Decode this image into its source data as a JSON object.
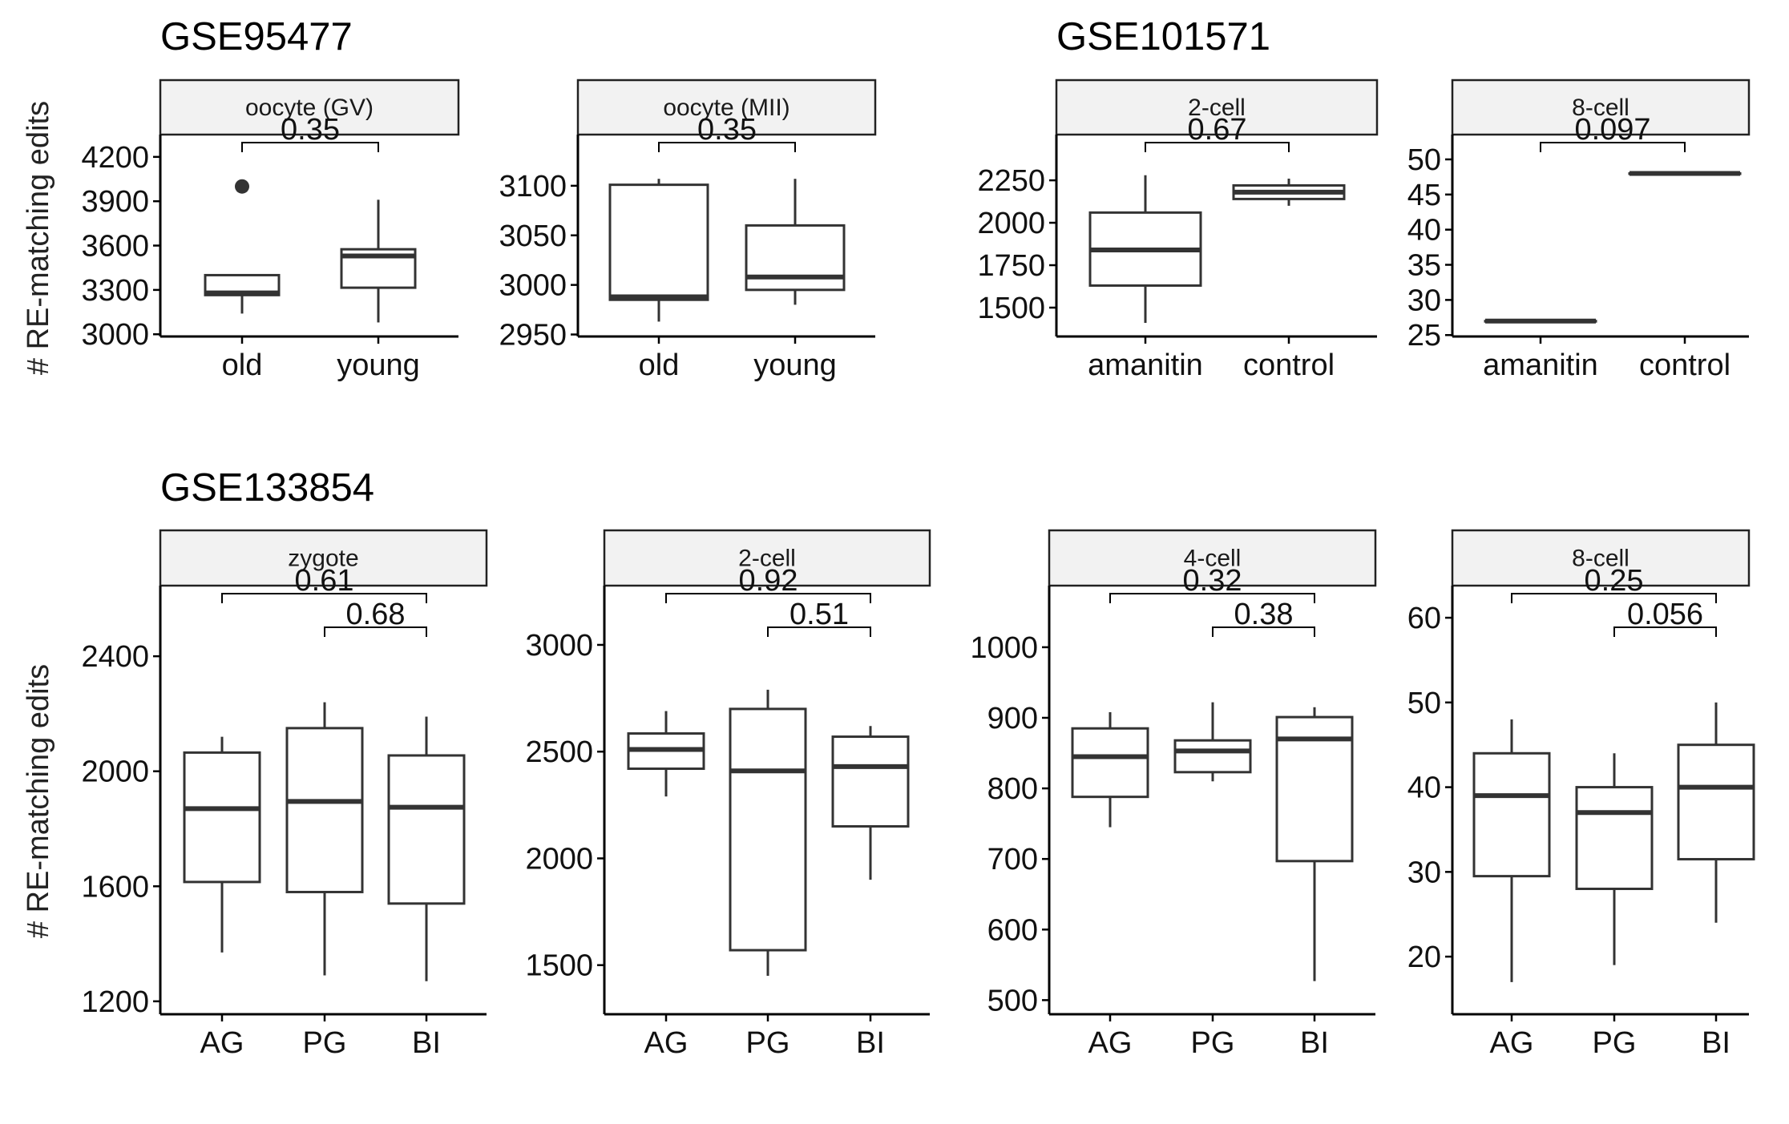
{
  "groups": [
    {
      "title": "GSE95477"
    },
    {
      "title": "GSE101571"
    },
    {
      "title": "GSE133854"
    }
  ],
  "ylabel": "# RE-matching edits",
  "chart_data": [
    {
      "type": "boxplot",
      "group": "GSE95477",
      "panel": "oocyte (GV)",
      "categories": [
        "old",
        "young"
      ],
      "yticks": [
        3000,
        3300,
        3600,
        3900,
        4200
      ],
      "ylim": [
        2985,
        4340
      ],
      "boxes": [
        {
          "category": "old",
          "lower_whisker": 3140,
          "q1": 3265,
          "median": 3280,
          "q3": 3400,
          "upper_whisker": 3400,
          "outliers": [
            4000
          ]
        },
        {
          "category": "young",
          "lower_whisker": 3080,
          "q1": 3315,
          "median": 3530,
          "q3": 3575,
          "upper_whisker": 3910,
          "outliers": []
        }
      ],
      "comparisons": [
        {
          "from": "old",
          "to": "young",
          "p": "0.35"
        }
      ]
    },
    {
      "type": "boxplot",
      "group": "GSE95477",
      "panel": "oocyte (MII)",
      "categories": [
        "old",
        "young"
      ],
      "yticks": [
        2950,
        3000,
        3050,
        3100
      ],
      "ylim": [
        2948,
        3150
      ],
      "boxes": [
        {
          "category": "old",
          "lower_whisker": 2963,
          "q1": 2985,
          "median": 2988,
          "q3": 3101,
          "upper_whisker": 3107,
          "outliers": []
        },
        {
          "category": "young",
          "lower_whisker": 2980,
          "q1": 2995,
          "median": 3008,
          "q3": 3060,
          "upper_whisker": 3107,
          "outliers": []
        }
      ],
      "comparisons": [
        {
          "from": "old",
          "to": "young",
          "p": "0.35"
        }
      ]
    },
    {
      "type": "boxplot",
      "group": "GSE101571",
      "panel": "2-cell",
      "categories": [
        "amanitin",
        "control"
      ],
      "yticks": [
        1500,
        1750,
        2000,
        2250
      ],
      "ylim": [
        1330,
        2510
      ],
      "boxes": [
        {
          "category": "amanitin",
          "lower_whisker": 1410,
          "q1": 1630,
          "median": 1840,
          "q3": 2060,
          "upper_whisker": 2280,
          "outliers": []
        },
        {
          "category": "control",
          "lower_whisker": 2100,
          "q1": 2140,
          "median": 2180,
          "q3": 2220,
          "upper_whisker": 2260,
          "outliers": []
        }
      ],
      "comparisons": [
        {
          "from": "amanitin",
          "to": "control",
          "p": "0.67"
        }
      ]
    },
    {
      "type": "boxplot",
      "group": "GSE101571",
      "panel": "8-cell",
      "categories": [
        "amanitin",
        "control"
      ],
      "yticks": [
        25,
        30,
        35,
        40,
        45,
        50
      ],
      "ylim": [
        24.8,
        53.3
      ],
      "boxes": [
        {
          "category": "amanitin",
          "lower_whisker": 27,
          "q1": 27,
          "median": 27,
          "q3": 27,
          "upper_whisker": 27,
          "outliers": []
        },
        {
          "category": "control",
          "lower_whisker": 48,
          "q1": 48,
          "median": 48,
          "q3": 48,
          "upper_whisker": 48,
          "outliers": []
        }
      ],
      "comparisons": [
        {
          "from": "amanitin",
          "to": "control",
          "p": "0.097"
        }
      ]
    },
    {
      "type": "boxplot",
      "group": "GSE133854",
      "panel": "zygote",
      "categories": [
        "AG",
        "PG",
        "BI"
      ],
      "yticks": [
        1200,
        1600,
        2000,
        2400
      ],
      "ylim": [
        1155,
        2640
      ],
      "boxes": [
        {
          "category": "AG",
          "lower_whisker": 1370,
          "q1": 1615,
          "median": 1870,
          "q3": 2065,
          "upper_whisker": 2120,
          "outliers": []
        },
        {
          "category": "PG",
          "lower_whisker": 1290,
          "q1": 1580,
          "median": 1895,
          "q3": 2150,
          "upper_whisker": 2240,
          "outliers": []
        },
        {
          "category": "BI",
          "lower_whisker": 1270,
          "q1": 1540,
          "median": 1875,
          "q3": 2055,
          "upper_whisker": 2190,
          "outliers": []
        }
      ],
      "comparisons": [
        {
          "from": "AG",
          "to": "BI",
          "p": "0.61"
        },
        {
          "from": "PG",
          "to": "BI",
          "p": "0.68"
        }
      ]
    },
    {
      "type": "boxplot",
      "group": "GSE133854",
      "panel": "2-cell",
      "categories": [
        "AG",
        "PG",
        "BI"
      ],
      "yticks": [
        1500,
        2000,
        2500,
        3000
      ],
      "ylim": [
        1270,
        3270
      ],
      "boxes": [
        {
          "category": "AG",
          "lower_whisker": 2290,
          "q1": 2420,
          "median": 2510,
          "q3": 2585,
          "upper_whisker": 2690,
          "outliers": []
        },
        {
          "category": "PG",
          "lower_whisker": 1450,
          "q1": 1570,
          "median": 2410,
          "q3": 2700,
          "upper_whisker": 2790,
          "outliers": []
        },
        {
          "category": "BI",
          "lower_whisker": 1900,
          "q1": 2150,
          "median": 2430,
          "q3": 2570,
          "upper_whisker": 2620,
          "outliers": []
        }
      ],
      "comparisons": [
        {
          "from": "AG",
          "to": "BI",
          "p": "0.92"
        },
        {
          "from": "PG",
          "to": "BI",
          "p": "0.51"
        }
      ]
    },
    {
      "type": "boxplot",
      "group": "GSE133854",
      "panel": "4-cell",
      "categories": [
        "AG",
        "PG",
        "BI"
      ],
      "yticks": [
        500,
        600,
        700,
        800,
        900,
        1000
      ],
      "ylim": [
        480,
        1085
      ],
      "boxes": [
        {
          "category": "AG",
          "lower_whisker": 745,
          "q1": 788,
          "median": 845,
          "q3": 885,
          "upper_whisker": 908,
          "outliers": []
        },
        {
          "category": "PG",
          "lower_whisker": 810,
          "q1": 823,
          "median": 853,
          "q3": 868,
          "upper_whisker": 922,
          "outliers": []
        },
        {
          "category": "BI",
          "lower_whisker": 527,
          "q1": 697,
          "median": 870,
          "q3": 901,
          "upper_whisker": 915,
          "outliers": []
        }
      ],
      "comparisons": [
        {
          "from": "AG",
          "to": "BI",
          "p": "0.32"
        },
        {
          "from": "PG",
          "to": "BI",
          "p": "0.38"
        }
      ]
    },
    {
      "type": "boxplot",
      "group": "GSE133854",
      "panel": "8-cell",
      "categories": [
        "AG",
        "PG",
        "BI"
      ],
      "yticks": [
        20,
        30,
        40,
        50,
        60
      ],
      "ylim": [
        13.2,
        63.6
      ],
      "boxes": [
        {
          "category": "AG",
          "lower_whisker": 17,
          "q1": 29.5,
          "median": 39,
          "q3": 44,
          "upper_whisker": 48,
          "outliers": []
        },
        {
          "category": "PG",
          "lower_whisker": 19,
          "q1": 28,
          "median": 37,
          "q3": 40,
          "upper_whisker": 44,
          "outliers": []
        },
        {
          "category": "BI",
          "lower_whisker": 24,
          "q1": 31.5,
          "median": 40,
          "q3": 45,
          "upper_whisker": 50,
          "outliers": []
        }
      ],
      "comparisons": [
        {
          "from": "AG",
          "to": "BI",
          "p": "0.25"
        },
        {
          "from": "PG",
          "to": "BI",
          "p": "0.056"
        }
      ]
    }
  ]
}
